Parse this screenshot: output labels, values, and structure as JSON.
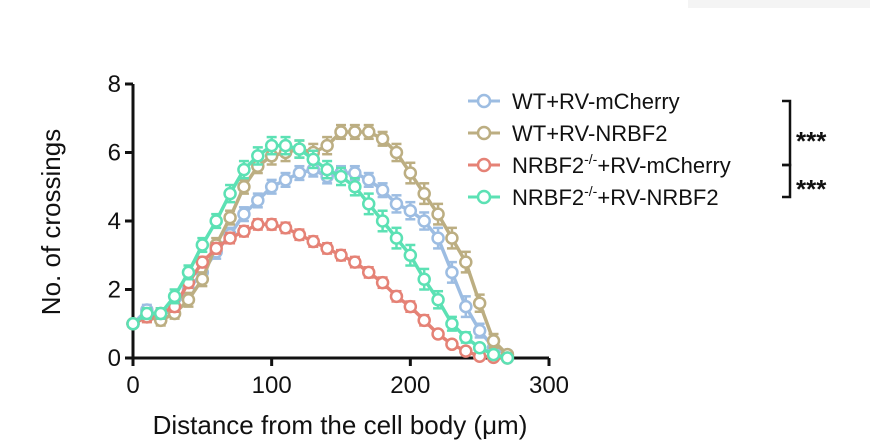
{
  "chart_data": {
    "type": "line",
    "xlabel": "Distance from the cell body (μm)",
    "ylabel": "No. of crossings",
    "xlim": [
      0,
      300
    ],
    "ylim": [
      0,
      8
    ],
    "xticks": [
      0,
      100,
      200,
      300
    ],
    "yticks": [
      0,
      2,
      4,
      6,
      8
    ],
    "x": [
      0,
      10,
      20,
      30,
      40,
      50,
      60,
      70,
      80,
      90,
      100,
      110,
      120,
      130,
      140,
      150,
      160,
      170,
      180,
      190,
      200,
      210,
      220,
      230,
      240,
      250,
      260,
      270
    ],
    "series": [
      {
        "name": "WT+RV-mCherry",
        "color": "#9dbde2",
        "values": [
          1.0,
          1.4,
          1.2,
          1.5,
          2.0,
          2.5,
          3.1,
          3.6,
          4.2,
          4.6,
          5.0,
          5.2,
          5.4,
          5.5,
          5.3,
          5.4,
          5.4,
          5.2,
          4.9,
          4.5,
          4.3,
          4.0,
          3.5,
          2.5,
          1.5,
          0.8,
          0.3,
          0.1
        ],
        "errors": [
          0.1,
          0.15,
          0.15,
          0.15,
          0.15,
          0.15,
          0.2,
          0.2,
          0.2,
          0.2,
          0.2,
          0.2,
          0.2,
          0.2,
          0.2,
          0.2,
          0.2,
          0.2,
          0.2,
          0.25,
          0.25,
          0.25,
          0.3,
          0.3,
          0.3,
          0.2,
          0.1,
          0.05
        ]
      },
      {
        "name": "WT+RV-NRBF2",
        "color": "#bcae82",
        "values": [
          1.0,
          1.2,
          1.1,
          1.3,
          1.7,
          2.3,
          3.3,
          4.1,
          5.0,
          5.6,
          5.9,
          6.0,
          6.1,
          6.0,
          6.2,
          6.6,
          6.6,
          6.6,
          6.4,
          6.0,
          5.4,
          4.8,
          4.2,
          3.5,
          2.8,
          1.6,
          0.5,
          0.1
        ],
        "errors": [
          0.1,
          0.15,
          0.15,
          0.15,
          0.2,
          0.2,
          0.2,
          0.2,
          0.2,
          0.2,
          0.25,
          0.25,
          0.25,
          0.25,
          0.25,
          0.2,
          0.2,
          0.2,
          0.2,
          0.25,
          0.3,
          0.3,
          0.3,
          0.3,
          0.3,
          0.25,
          0.2,
          0.05
        ]
      },
      {
        "name": "NRBF2-/-+RV-mCherry",
        "color": "#e58276",
        "values": [
          1.0,
          1.2,
          1.3,
          1.5,
          2.2,
          2.8,
          3.2,
          3.5,
          3.7,
          3.9,
          3.9,
          3.8,
          3.6,
          3.4,
          3.2,
          3.0,
          2.8,
          2.5,
          2.2,
          1.8,
          1.5,
          1.1,
          0.7,
          0.4,
          0.2,
          0.05,
          0.02,
          0.0
        ],
        "errors": [
          0.1,
          0.15,
          0.15,
          0.15,
          0.15,
          0.15,
          0.15,
          0.15,
          0.15,
          0.15,
          0.15,
          0.15,
          0.15,
          0.15,
          0.15,
          0.15,
          0.15,
          0.15,
          0.15,
          0.15,
          0.15,
          0.15,
          0.1,
          0.1,
          0.05,
          0.03,
          0.02,
          0.0
        ]
      },
      {
        "name": "NRBF2-/-+RV-NRBF2",
        "color": "#5ce1b4",
        "values": [
          1.0,
          1.3,
          1.3,
          1.8,
          2.5,
          3.3,
          4.0,
          4.8,
          5.5,
          5.9,
          6.2,
          6.2,
          6.1,
          5.8,
          5.5,
          5.3,
          5.0,
          4.5,
          4.0,
          3.5,
          3.0,
          2.3,
          1.7,
          1.0,
          0.6,
          0.3,
          0.1,
          0.0
        ],
        "errors": [
          0.1,
          0.15,
          0.15,
          0.2,
          0.2,
          0.2,
          0.2,
          0.25,
          0.25,
          0.25,
          0.25,
          0.25,
          0.25,
          0.25,
          0.25,
          0.25,
          0.25,
          0.3,
          0.3,
          0.3,
          0.3,
          0.3,
          0.25,
          0.2,
          0.15,
          0.1,
          0.05,
          0.0
        ]
      }
    ],
    "legend": {
      "position": "top-right",
      "entries": [
        {
          "base": "WT+RV-mCherry",
          "sup": "",
          "tail": ""
        },
        {
          "base": "WT+RV-NRBF2",
          "sup": "",
          "tail": ""
        },
        {
          "base": "NRBF2",
          "sup": "-/-",
          "tail": "+RV-mCherry"
        },
        {
          "base": "NRBF2",
          "sup": "-/-",
          "tail": "+RV-NRBF2"
        }
      ]
    },
    "significance": [
      {
        "label": "***",
        "from_series": 0,
        "to_series": 2
      },
      {
        "label": "***",
        "from_series": 2,
        "to_series": 3
      }
    ],
    "grid": false
  }
}
